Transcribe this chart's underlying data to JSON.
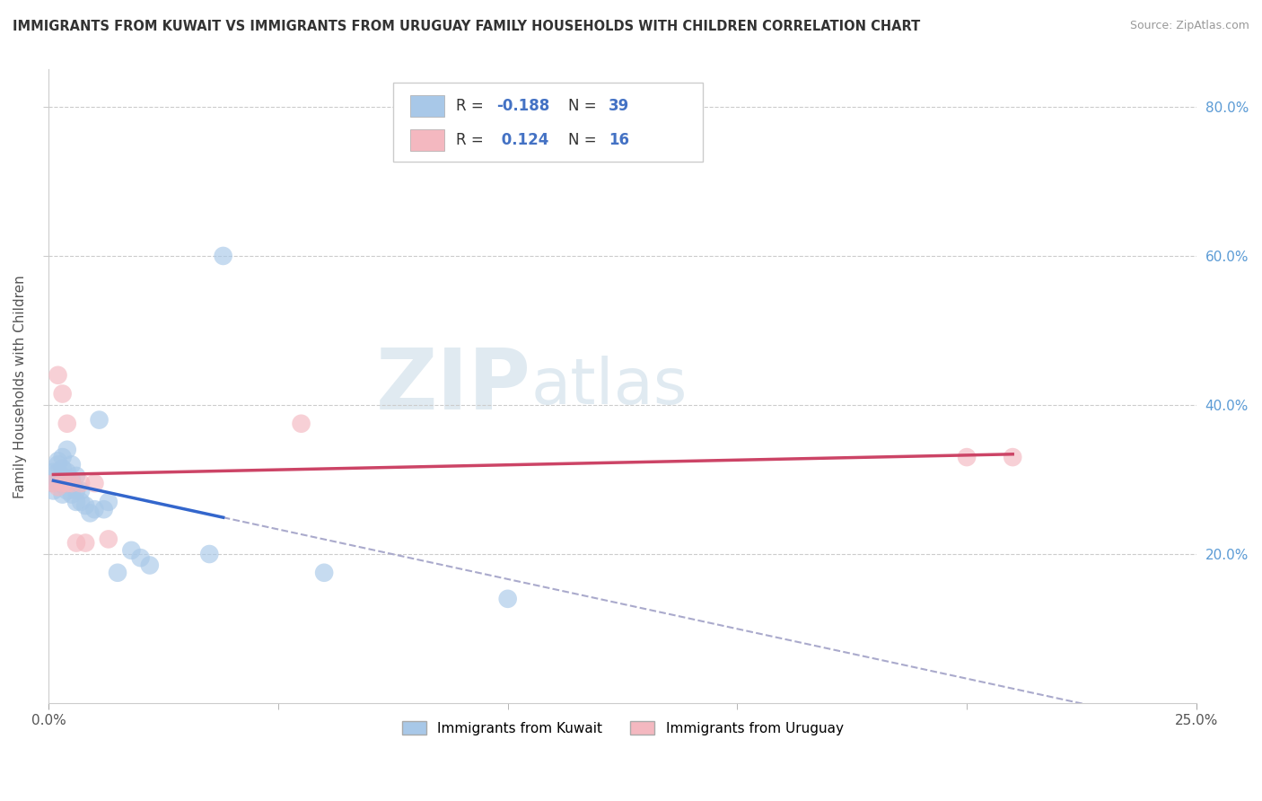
{
  "title": "IMMIGRANTS FROM KUWAIT VS IMMIGRANTS FROM URUGUAY FAMILY HOUSEHOLDS WITH CHILDREN CORRELATION CHART",
  "source": "Source: ZipAtlas.com",
  "ylabel": "Family Households with Children",
  "kuwait_R": -0.188,
  "kuwait_N": 39,
  "uruguay_R": 0.124,
  "uruguay_N": 16,
  "kuwait_color": "#a8c8e8",
  "uruguay_color": "#f4b8c0",
  "kuwait_line_color": "#3366cc",
  "uruguay_line_color": "#cc4466",
  "background_color": "#ffffff",
  "xlim": [
    0.0,
    0.25
  ],
  "ylim": [
    0.0,
    0.85
  ],
  "yticks": [
    0.2,
    0.4,
    0.6,
    0.8
  ],
  "ytick_labels": [
    "20.0%",
    "40.0%",
    "60.0%",
    "80.0%"
  ],
  "kuwait_x": [
    0.001,
    0.001,
    0.001,
    0.002,
    0.002,
    0.002,
    0.002,
    0.003,
    0.003,
    0.003,
    0.003,
    0.003,
    0.004,
    0.004,
    0.004,
    0.004,
    0.005,
    0.005,
    0.005,
    0.005,
    0.006,
    0.006,
    0.006,
    0.007,
    0.007,
    0.008,
    0.009,
    0.01,
    0.011,
    0.012,
    0.013,
    0.015,
    0.018,
    0.02,
    0.022,
    0.035,
    0.038,
    0.06,
    0.1
  ],
  "kuwait_y": [
    0.285,
    0.295,
    0.31,
    0.295,
    0.31,
    0.32,
    0.325,
    0.28,
    0.295,
    0.305,
    0.315,
    0.33,
    0.285,
    0.3,
    0.31,
    0.34,
    0.28,
    0.295,
    0.3,
    0.32,
    0.27,
    0.285,
    0.305,
    0.27,
    0.285,
    0.265,
    0.255,
    0.26,
    0.38,
    0.26,
    0.27,
    0.175,
    0.205,
    0.195,
    0.185,
    0.2,
    0.6,
    0.175,
    0.14
  ],
  "kuwait_line_xrange": [
    0.001,
    0.038
  ],
  "kuwait_dash_xrange": [
    0.038,
    0.25
  ],
  "uruguay_x": [
    0.001,
    0.002,
    0.002,
    0.003,
    0.003,
    0.004,
    0.004,
    0.005,
    0.006,
    0.007,
    0.008,
    0.01,
    0.013,
    0.055,
    0.2,
    0.21
  ],
  "uruguay_y": [
    0.295,
    0.29,
    0.44,
    0.295,
    0.415,
    0.295,
    0.375,
    0.295,
    0.215,
    0.295,
    0.215,
    0.295,
    0.22,
    0.375,
    0.33,
    0.33
  ],
  "uruguay_line_xrange": [
    0.001,
    0.21
  ],
  "watermark_zip": "ZIP",
  "watermark_atlas": "atlas",
  "legend_entries": [
    {
      "color": "#a8c8e8",
      "R": "-0.188",
      "N": "39"
    },
    {
      "color": "#f4b8c0",
      "R": " 0.124",
      "N": "16"
    }
  ]
}
